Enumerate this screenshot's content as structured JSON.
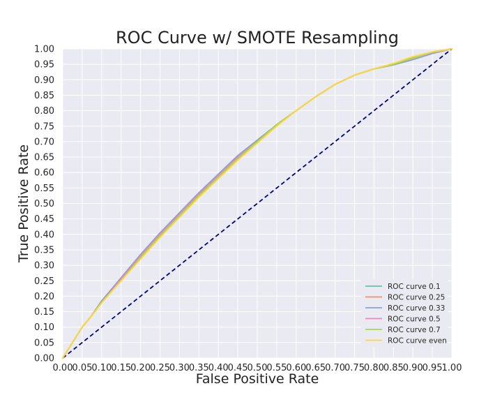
{
  "chart_data": {
    "type": "line",
    "title": "ROC Curve w/ SMOTE Resampling",
    "xlabel": "False Positive Rate",
    "ylabel": "True Positive Rate",
    "xlim": [
      0,
      1
    ],
    "ylim": [
      0,
      1
    ],
    "grid": true,
    "legend_position": "lower-right",
    "xticks": [
      "0.00",
      "0.05",
      "0.10",
      "0.15",
      "0.20",
      "0.25",
      "0.30",
      "0.35",
      "0.40",
      "0.45",
      "0.50",
      "0.55",
      "0.60",
      "0.65",
      "0.70",
      "0.75",
      "0.80",
      "0.85",
      "0.90",
      "0.95",
      "1.00"
    ],
    "yticks": [
      "0.00",
      "0.05",
      "0.10",
      "0.15",
      "0.20",
      "0.25",
      "0.30",
      "0.35",
      "0.40",
      "0.45",
      "0.50",
      "0.55",
      "0.60",
      "0.65",
      "0.70",
      "0.75",
      "0.80",
      "0.85",
      "0.90",
      "0.95",
      "1.00"
    ],
    "reference_line": {
      "x": [
        0,
        1
      ],
      "y": [
        0,
        1
      ],
      "color": "#000080",
      "style": "dashed"
    },
    "series": [
      {
        "name": "ROC curve 0.1",
        "color": "#66c2a5",
        "x": [
          0,
          0.01,
          0.03,
          0.05,
          0.07,
          0.1,
          0.15,
          0.2,
          0.25,
          0.3,
          0.35,
          0.4,
          0.45,
          0.5,
          0.55,
          0.6,
          0.65,
          0.7,
          0.75,
          0.8,
          0.85,
          0.9,
          0.95,
          1.0
        ],
        "y": [
          0,
          0.02,
          0.06,
          0.1,
          0.13,
          0.18,
          0.255,
          0.33,
          0.4,
          0.465,
          0.53,
          0.59,
          0.65,
          0.7,
          0.755,
          0.8,
          0.845,
          0.885,
          0.915,
          0.935,
          0.95,
          0.97,
          0.99,
          1.0
        ]
      },
      {
        "name": "ROC curve 0.25",
        "color": "#fc8d62",
        "x": [
          0,
          0.01,
          0.03,
          0.05,
          0.07,
          0.1,
          0.15,
          0.2,
          0.25,
          0.3,
          0.35,
          0.4,
          0.45,
          0.5,
          0.55,
          0.6,
          0.65,
          0.7,
          0.75,
          0.8,
          0.85,
          0.9,
          0.95,
          1.0
        ],
        "y": [
          0,
          0.02,
          0.06,
          0.1,
          0.13,
          0.18,
          0.25,
          0.325,
          0.395,
          0.46,
          0.525,
          0.585,
          0.645,
          0.7,
          0.755,
          0.8,
          0.845,
          0.885,
          0.915,
          0.935,
          0.952,
          0.972,
          0.99,
          1.0
        ]
      },
      {
        "name": "ROC curve 0.33",
        "color": "#8da0cb",
        "x": [
          0,
          0.01,
          0.03,
          0.05,
          0.07,
          0.1,
          0.15,
          0.2,
          0.25,
          0.3,
          0.35,
          0.4,
          0.45,
          0.5,
          0.55,
          0.6,
          0.65,
          0.7,
          0.75,
          0.8,
          0.85,
          0.9,
          0.95,
          1.0
        ],
        "y": [
          0,
          0.02,
          0.06,
          0.1,
          0.13,
          0.185,
          0.26,
          0.335,
          0.405,
          0.47,
          0.535,
          0.595,
          0.655,
          0.705,
          0.755,
          0.8,
          0.845,
          0.885,
          0.915,
          0.935,
          0.948,
          0.965,
          0.985,
          1.0
        ]
      },
      {
        "name": "ROC curve 0.5",
        "color": "#e78ac3",
        "x": [
          0,
          0.01,
          0.03,
          0.05,
          0.07,
          0.1,
          0.15,
          0.2,
          0.25,
          0.3,
          0.35,
          0.4,
          0.45,
          0.5,
          0.55,
          0.6,
          0.65,
          0.7,
          0.75,
          0.8,
          0.85,
          0.9,
          0.95,
          1.0
        ],
        "y": [
          0,
          0.02,
          0.06,
          0.1,
          0.13,
          0.18,
          0.255,
          0.33,
          0.4,
          0.465,
          0.53,
          0.59,
          0.65,
          0.7,
          0.755,
          0.8,
          0.845,
          0.885,
          0.915,
          0.935,
          0.95,
          0.97,
          0.99,
          1.0
        ]
      },
      {
        "name": "ROC curve 0.7",
        "color": "#a6d854",
        "x": [
          0,
          0.01,
          0.03,
          0.05,
          0.07,
          0.1,
          0.15,
          0.2,
          0.25,
          0.3,
          0.35,
          0.4,
          0.45,
          0.5,
          0.55,
          0.6,
          0.65,
          0.7,
          0.75,
          0.8,
          0.85,
          0.9,
          0.95,
          1.0
        ],
        "y": [
          0,
          0.02,
          0.06,
          0.1,
          0.13,
          0.18,
          0.25,
          0.325,
          0.395,
          0.46,
          0.525,
          0.585,
          0.645,
          0.7,
          0.755,
          0.8,
          0.845,
          0.885,
          0.915,
          0.935,
          0.95,
          0.97,
          0.99,
          1.0
        ]
      },
      {
        "name": "ROC curve even",
        "color": "#ffd92f",
        "x": [
          0,
          0.01,
          0.03,
          0.05,
          0.07,
          0.1,
          0.15,
          0.2,
          0.25,
          0.3,
          0.35,
          0.4,
          0.45,
          0.5,
          0.55,
          0.6,
          0.65,
          0.7,
          0.75,
          0.8,
          0.85,
          0.9,
          0.95,
          1.0
        ],
        "y": [
          0,
          0.02,
          0.06,
          0.1,
          0.13,
          0.178,
          0.25,
          0.32,
          0.39,
          0.455,
          0.52,
          0.58,
          0.64,
          0.695,
          0.75,
          0.8,
          0.845,
          0.885,
          0.915,
          0.935,
          0.953,
          0.975,
          0.99,
          1.0
        ]
      }
    ]
  }
}
